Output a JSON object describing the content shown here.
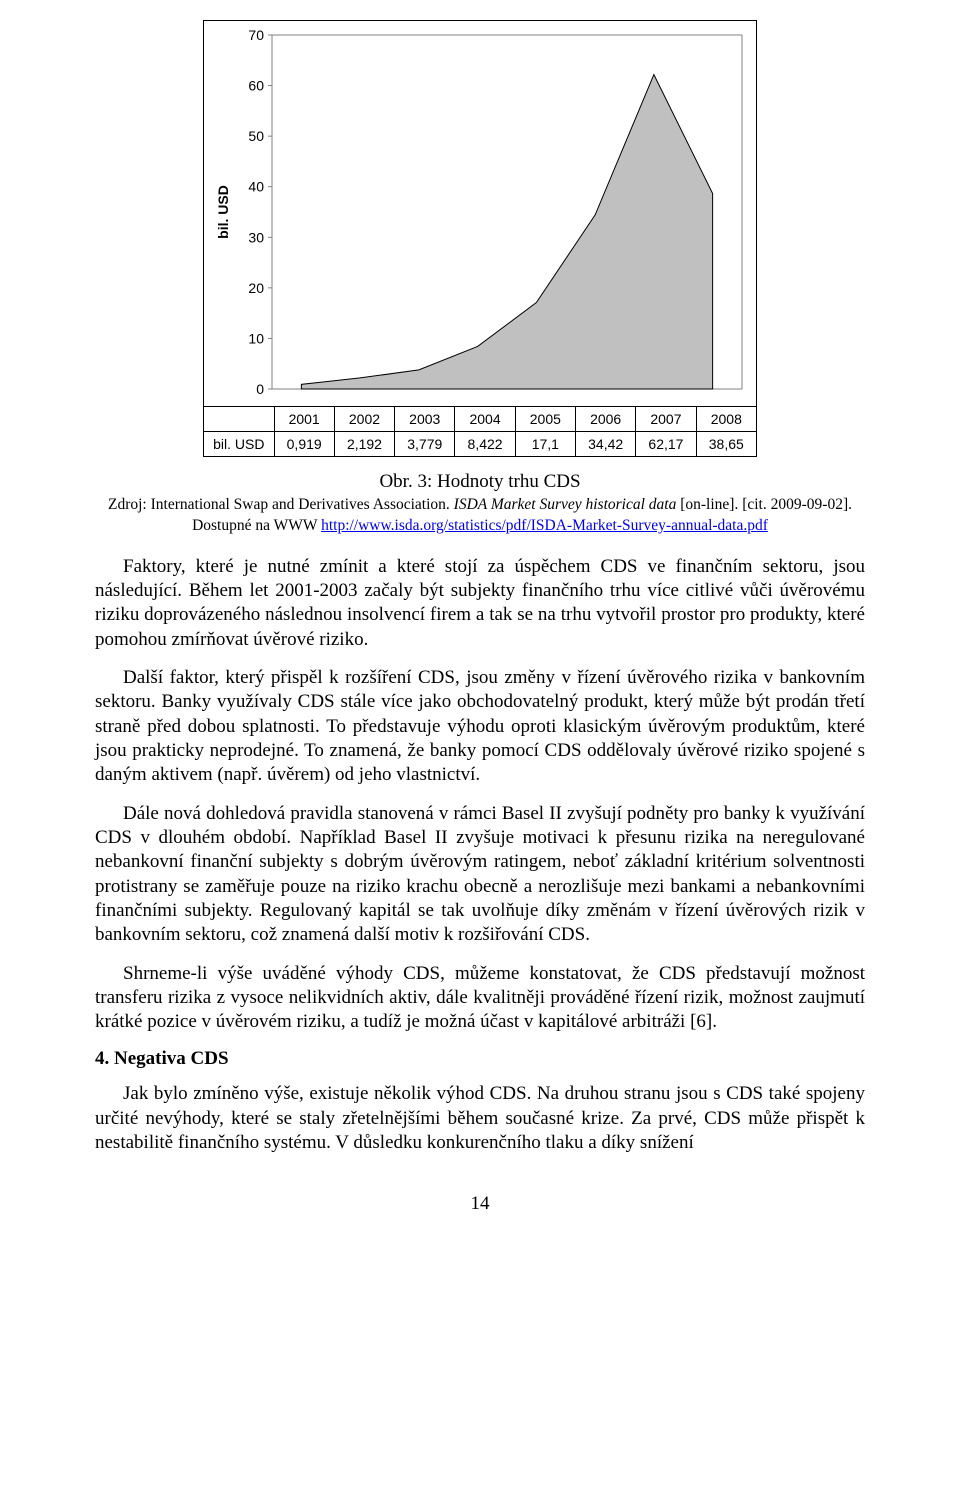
{
  "chart": {
    "type": "area",
    "ylabel": "bil. USD",
    "ylabel_fontsize": 14,
    "ylabel_fontweight": "bold",
    "row_label": "bil. USD",
    "years": [
      "2001",
      "2002",
      "2003",
      "2004",
      "2005",
      "2006",
      "2007",
      "2008"
    ],
    "values_text": [
      "0,919",
      "2,192",
      "3,779",
      "8,422",
      "17,1",
      "34,42",
      "62,17",
      "38,65"
    ],
    "values_num": [
      0.919,
      2.192,
      3.779,
      8.422,
      17.1,
      34.42,
      62.17,
      38.65
    ],
    "ylim": [
      0,
      70
    ],
    "ytick_step": 10,
    "yticks": [
      0,
      10,
      20,
      30,
      40,
      50,
      60,
      70
    ],
    "fill_color": "#c0c0c0",
    "line_color": "#000000",
    "line_width": 1,
    "grid_color": "#808080",
    "tick_font": "Arial",
    "tick_fontsize": 14,
    "plot_area_bg": "#ffffff",
    "frame_bg": "#ffffff"
  },
  "caption": "Obr. 3: Hodnoty trhu CDS",
  "source": {
    "prefix": "Zdroj: International Swap and Derivatives Association. ",
    "ital": "ISDA Market Survey historical data",
    "after_ital": " [on-line]. [cit. 2009-09-02]. Dostupné na WWW ",
    "link": "http://www.isda.org/statistics/pdf/ISDA-Market-Survey-annual-data.pdf"
  },
  "paragraphs": {
    "p1": "Faktory, které je nutné zmínit a které stojí za úspěchem CDS ve finančním sektoru, jsou následující. Během let 2001-2003 začaly být subjekty finančního trhu více citlivé vůči úvěrovému riziku doprovázeného následnou insolvencí firem a tak se na trhu vytvořil prostor pro produkty, které pomohou zmírňovat úvěrové riziko.",
    "p2": "Další faktor, který přispěl k rozšíření CDS, jsou změny v řízení úvěrového rizika v bankovním sektoru. Banky využívaly CDS stále více jako obchodovatelný produkt, který může být prodán třetí straně před dobou splatnosti. To představuje výhodu oproti klasickým úvěrovým produktům, které jsou prakticky neprodejné. To znamená, že banky pomocí CDS oddělovaly úvěrové riziko spojené s daným aktivem (např. úvěrem) od jeho vlastnictví.",
    "p3": "Dále nová dohledová pravidla stanovená v rámci Basel II zvyšují podněty pro banky k využívání CDS v dlouhém období. Například Basel II zvyšuje motivaci k přesunu rizika na neregulované nebankovní finanční subjekty s dobrým úvěrovým ratingem, neboť základní kritérium solventnosti protistrany se zaměřuje pouze na riziko krachu obecně a nerozlišuje mezi bankami a nebankovními finančními subjekty. Regulovaný kapitál se tak uvolňuje díky změnám v řízení úvěrových rizik v bankovním sektoru, což znamená další motiv k rozšiřování CDS.",
    "p4": "Shrneme-li výše uváděné výhody CDS, můžeme konstatovat, že CDS představují možnost transferu rizika z vysoce nelikvidních aktiv, dále kvalitněji prováděné řízení rizik, možnost zaujmutí krátké pozice v úvěrovém riziku, a tudíž je možná účast v kapitálové arbitráži [6].",
    "p5": "Jak bylo zmíněno výše, existuje několik výhod CDS. Na druhou stranu jsou s CDS také spojeny určité nevýhody, které se staly zřetelnějšími během současné krize. Za prvé, CDS může přispět k nestabilitě finančního systému. V důsledku konkurenčního tlaku a díky snížení"
  },
  "section4": "4.  Negativa CDS",
  "page_number": "14"
}
